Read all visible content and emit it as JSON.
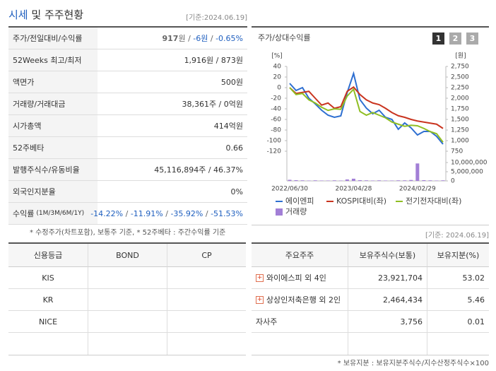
{
  "header": {
    "title": "시세",
    "title_rest": "및 주주현황",
    "date": "[기준:2024.06.19]"
  },
  "quote": {
    "rows": [
      {
        "label": "주가/전일대비/수익률",
        "value": [
          {
            "text": "917",
            "bold": true
          },
          {
            "text": "원 / "
          },
          {
            "text": "-6원",
            "color": "#1f5fbf"
          },
          {
            "text": " / "
          },
          {
            "text": "-0.65%",
            "color": "#1f5fbf"
          }
        ]
      },
      {
        "label": "52Weeks 최고/최저",
        "value": "1,916원 / 873원"
      },
      {
        "label": "액면가",
        "value": "500원"
      },
      {
        "label": "거래량/거래대금",
        "value": "38,361주 / 0억원"
      },
      {
        "label": "시가총액",
        "value": "414억원"
      },
      {
        "label": "52주베타",
        "value": "0.66"
      },
      {
        "label": "발행주식수/유동비율",
        "value": "45,116,894주 / 46.37%"
      },
      {
        "label": "외국인지분율",
        "value": "0%"
      },
      {
        "label": "수익률",
        "label_sub": "(1M/3M/6M/1Y)",
        "value": [
          {
            "text": "-14.22%",
            "color": "#1f5fbf"
          },
          {
            "text": " / "
          },
          {
            "text": "-11.91%",
            "color": "#1f5fbf"
          },
          {
            "text": " / "
          },
          {
            "text": "-35.92%",
            "color": "#1f5fbf"
          },
          {
            "text": " / "
          },
          {
            "text": "-51.53%",
            "color": "#1f5fbf"
          }
        ]
      }
    ],
    "note": "* 수정주가(차트포함), 보통주 기준, * 52주베타 : 주간수익률 기준"
  },
  "chart_data": {
    "type": "line",
    "title": "주가/상대수익률",
    "buttons": [
      "1",
      "2",
      "3"
    ],
    "y_label": "[%]",
    "y2_label": "[원]",
    "categories": [
      "2022/06/30",
      null,
      null,
      null,
      null,
      null,
      null,
      null,
      null,
      null,
      "2023/04/28",
      null,
      null,
      null,
      null,
      null,
      null,
      null,
      null,
      null,
      "2024/02/29",
      null,
      null,
      null,
      null
    ],
    "ylim": [
      -120,
      40
    ],
    "yticks": [
      40,
      20,
      0,
      -20,
      -40,
      -60,
      -80,
      -100,
      -120
    ],
    "y2lim": [
      750,
      2750
    ],
    "y2ticks": [
      {
        "value": 2750,
        "label": "2,750"
      },
      {
        "value": 2500,
        "label": "2,500"
      },
      {
        "value": 2250,
        "label": "2,250"
      },
      {
        "value": 2000,
        "label": "2,000"
      },
      {
        "value": 1750,
        "label": "1,750"
      },
      {
        "value": 1500,
        "label": "1,500"
      },
      {
        "value": 1250,
        "label": "1,250"
      },
      {
        "value": 1000,
        "label": "1,000"
      },
      {
        "value": 750,
        "label": "750"
      }
    ],
    "volume_lim": [
      0,
      10000000
    ],
    "volume_ticks": [
      {
        "value": 10000000,
        "label": "10,000,000"
      },
      {
        "value": 5000000,
        "label": "5,000,000"
      },
      0
    ],
    "series": [
      {
        "name": "에이엔피",
        "color": "#2e6fd1",
        "axis": "y2",
        "values": [
          2350,
          2183,
          2250,
          2000,
          1867,
          1717,
          1600,
          1550,
          1583,
          2133,
          2583,
          1967,
          1767,
          1633,
          1717,
          1550,
          1500,
          1267,
          1417,
          1300,
          1133,
          1217,
          1217,
          1100,
          917
        ]
      },
      {
        "name": "KOSPI대비(좌)",
        "color": "#c9341f",
        "values": [
          0,
          -11,
          -9,
          -7,
          -20,
          -33,
          -29,
          -39,
          -36,
          -7,
          1,
          -13,
          -23,
          -29,
          -32,
          -39,
          -47,
          -53,
          -56,
          -60,
          -63,
          -65,
          -67,
          -69,
          -77
        ]
      },
      {
        "name": "전기전자대비(좌)",
        "color": "#8fbe23",
        "values": [
          0,
          -13,
          -11,
          -23,
          -29,
          -37,
          -43,
          -40,
          -41,
          -16,
          -3,
          -45,
          -52,
          -47,
          -52,
          -57,
          -65,
          -69,
          -73,
          -71,
          -72,
          -77,
          -83,
          -87,
          -103
        ]
      },
      {
        "name": "거래량",
        "color": "#a27fd6",
        "axis": "volume",
        "type": "bar",
        "values": [
          600000,
          400000,
          300000,
          200000,
          300000,
          200000,
          200000,
          300000,
          200000,
          800000,
          1200000,
          400000,
          300000,
          200000,
          300000,
          200000,
          200000,
          300000,
          300000,
          500000,
          9500000,
          400000,
          300000,
          200000,
          300000
        ]
      }
    ]
  },
  "date_note": "[기준: 2024.06.19]",
  "credit": {
    "headers": [
      "신용등급",
      "BOND",
      "CP"
    ],
    "rows": [
      [
        "KIS",
        null,
        null
      ],
      [
        "KR",
        null,
        null
      ],
      [
        "NICE",
        null,
        null
      ],
      [
        null,
        null,
        null
      ]
    ]
  },
  "holders": {
    "headers": [
      "주요주주",
      "보유주식수(보통)",
      "보유지분(%)"
    ],
    "rows": [
      {
        "name": "와이에스피 외 4인",
        "shares": "23,921,704",
        "pct": "53.02",
        "icon": true
      },
      {
        "name": "상상인저축은행 외 2인",
        "shares": "2,464,434",
        "pct": "5.46",
        "icon": true
      },
      {
        "name": "자사주",
        "shares": "3,756",
        "pct": "0.01",
        "icon": false
      },
      {
        "name": null,
        "shares": null,
        "pct": null,
        "icon": false
      }
    ]
  },
  "footnote": "* 보유지분 : 보유지분주식수/지수산정주식수×100"
}
